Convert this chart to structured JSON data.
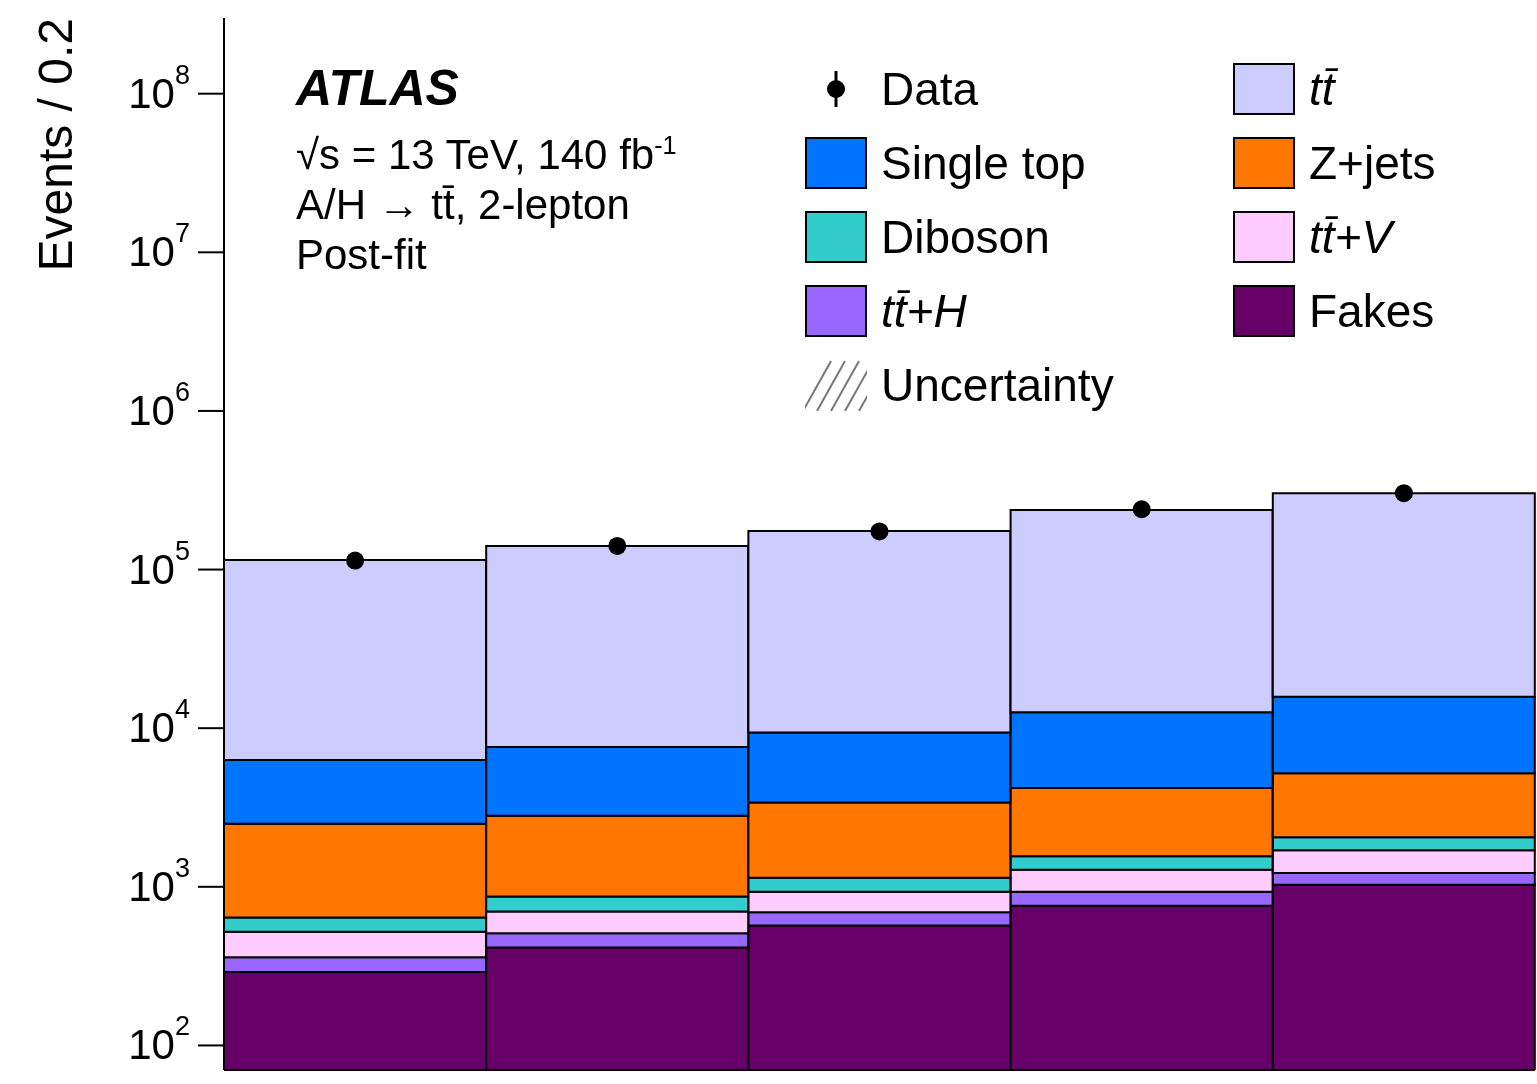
{
  "chart_data": {
    "type": "bar",
    "stacked": true,
    "log": true,
    "ylabel": "Events / 0.2",
    "categories": [
      null,
      null,
      null,
      null,
      null
    ],
    "ylim": [
      70,
      300000000
    ],
    "yticks": [
      {
        "value": 100,
        "label": "10$^{2}$"
      },
      {
        "value": 1000,
        "label": "10$^{3}$"
      },
      {
        "value": 10000,
        "label": "10$^{4}$"
      },
      {
        "value": 100000,
        "label": "10$^{5}$"
      },
      {
        "value": 1000000,
        "label": "10$^{6}$"
      },
      {
        "value": 10000000,
        "label": "10$^{7}$"
      },
      {
        "value": 100000000,
        "label": "10$^{8}$"
      }
    ],
    "tick_labels": "y",
    "legend": "top right",
    "annotations": [
      "ATLAS",
      "√s = 13 TeV, 140 fb$^{-1}$",
      "A/H → tt̄, 2-lepton",
      "Post-fit"
    ],
    "series": [
      {
        "name": "Fakes",
        "color": "#660066",
        "values": [
          290,
          415,
          570,
          760,
          1030
        ]
      },
      {
        "name": "tt̄+H",
        "color": "#9966ff",
        "values": [
          70,
          95,
          120,
          170,
          190
        ]
      },
      {
        "name": "tt̄+V",
        "color": "#ffccff",
        "values": [
          160,
          190,
          240,
          350,
          480
        ]
      },
      {
        "name": "Diboson",
        "color": "#33cccc",
        "values": [
          120,
          170,
          210,
          280,
          350
        ]
      },
      {
        "name": "Z+jets",
        "color": "#ff7700",
        "values": [
          1860,
          1930,
          2260,
          2640,
          3150
        ]
      },
      {
        "name": "Single top",
        "color": "#0073ff",
        "values": [
          3800,
          4800,
          6000,
          8400,
          10600
        ]
      },
      {
        "name": "tt̄",
        "color": "#ccccff",
        "values": [
          108700,
          133400,
          165600,
          224400,
          287200
        ]
      },
      {
        "name": "Data",
        "type": "scatter",
        "color": "#000000",
        "marker": "circle",
        "values": [
          114000,
          141000,
          174000,
          240000,
          303000
        ]
      },
      {
        "name": "Uncertainty",
        "type": "area",
        "color": "#777777",
        "values": [
          null,
          null,
          null,
          null,
          null
        ]
      }
    ]
  }
}
